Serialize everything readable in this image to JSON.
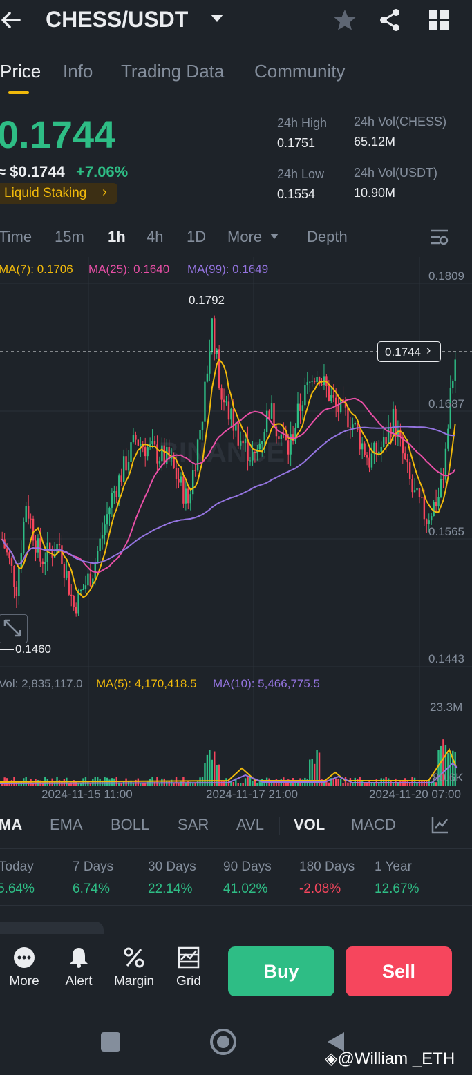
{
  "header": {
    "pair": "CHESS/USDT"
  },
  "tabs": [
    "Price",
    "Info",
    "Trading Data",
    "Community"
  ],
  "price": {
    "last": "0.1744",
    "usd": "≈ $0.1744",
    "change": "+7.06%",
    "tag": "Liquid Staking",
    "high_label": "24h High",
    "high": "0.1751",
    "low_label": "24h Low",
    "low": "0.1554",
    "vol_base_label": "24h Vol(CHESS)",
    "vol_base": "65.12M",
    "vol_quote_label": "24h Vol(USDT)",
    "vol_quote": "10.90M"
  },
  "timeframes": [
    "Time",
    "15m",
    "1h",
    "4h",
    "1D",
    "More",
    "Depth"
  ],
  "ma_legend": {
    "ma7": "MA(7): 0.1706",
    "ma25": "MA(25): 0.1640",
    "ma99": "MA(99): 0.1649"
  },
  "chart": {
    "y_ticks": [
      "0.1809",
      "0.1687",
      "0.1565",
      "0.1443"
    ],
    "high_marker": "0.1792",
    "low_marker": "0.1460",
    "current_price": "0.1744",
    "watermark": "BINANCE",
    "vol_legend": {
      "vol": "Vol: 2,835,117.0",
      "ma5": "MA(5): 4,170,418.5",
      "ma10": "MA(10): 5,466,775.5"
    },
    "vol_ticks": [
      "23.3M",
      "80.6K"
    ],
    "x_labels": [
      "2024-11-15 11:00",
      "2024-11-17 21:00",
      "2024-11-20 07:00"
    ]
  },
  "indicators": [
    "MA",
    "EMA",
    "BOLL",
    "SAR",
    "AVL",
    "VOL",
    "MACD"
  ],
  "performance": [
    {
      "label": "Today",
      "value": "5.64%"
    },
    {
      "label": "7 Days",
      "value": "6.74%"
    },
    {
      "label": "30 Days",
      "value": "22.14%"
    },
    {
      "label": "90 Days",
      "value": "41.02%"
    },
    {
      "label": "180 Days",
      "value": "-2.08%"
    },
    {
      "label": "1 Year",
      "value": "12.67%"
    }
  ],
  "actions": [
    "More",
    "Alert",
    "Margin",
    "Grid"
  ],
  "buy_label": "Buy",
  "sell_label": "Sell",
  "watermark_user": "@William _ETH",
  "colors": {
    "up": "#2ebd85",
    "down": "#f6465d",
    "accent": "#f0b90b",
    "ma7": "#f0b90b",
    "ma25": "#e84fa6",
    "ma99": "#9474e0"
  }
}
